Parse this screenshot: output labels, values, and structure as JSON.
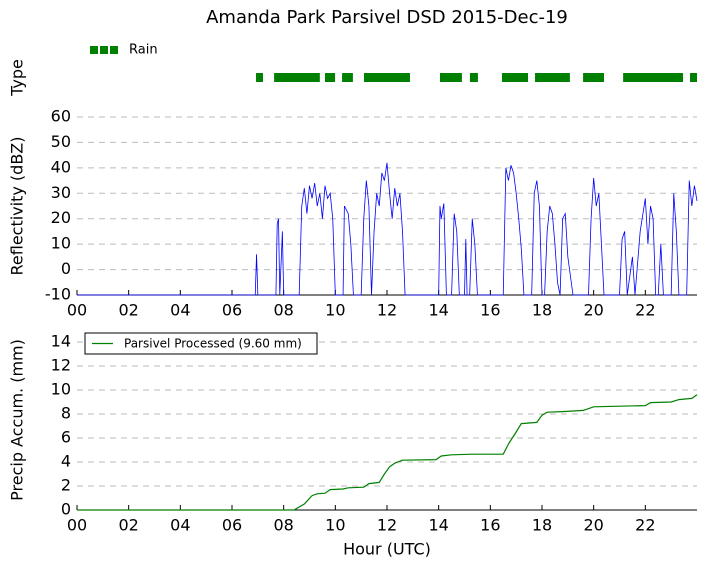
{
  "chart_data": [
    {
      "type": "timeline",
      "title": "Amanda Park Parsivel DSD 2015-Dec-19",
      "ylabel": "Type",
      "xlim": [
        0,
        24
      ],
      "series": [
        {
          "name": "Rain",
          "color": "#008000",
          "start": [
            6.93,
            7.63,
            9.6,
            10.26,
            11.11,
            14.05,
            15.21,
            16.45,
            17.73,
            19.59,
            21.14,
            23.73
          ],
          "end": [
            7.2,
            9.4,
            9.99,
            10.68,
            12.89,
            14.9,
            15.52,
            17.46,
            19.08,
            20.4,
            23.46,
            24
          ]
        }
      ]
    },
    {
      "type": "line",
      "ylabel": "Reflectivity (dBZ)",
      "grid": true,
      "xlim": [
        0,
        24
      ],
      "ylim": [
        -10,
        60
      ],
      "xticks": [
        {
          "value": 0,
          "label": "00"
        },
        {
          "value": 2,
          "label": "02"
        },
        {
          "value": 4,
          "label": "04"
        },
        {
          "value": 6,
          "label": "06"
        },
        {
          "value": 8,
          "label": "08"
        },
        {
          "value": 10,
          "label": "10"
        },
        {
          "value": 12,
          "label": "12"
        },
        {
          "value": 14,
          "label": "14"
        },
        {
          "value": 16,
          "label": "16"
        },
        {
          "value": 18,
          "label": "18"
        },
        {
          "value": 20,
          "label": "20"
        },
        {
          "value": 22,
          "label": "22"
        }
      ],
      "yticks": [
        -10,
        0,
        10,
        20,
        30,
        40,
        50,
        60
      ],
      "x": [
        0,
        6.9,
        6.95,
        7.0,
        7.7,
        7.75,
        7.8,
        7.85,
        7.95,
        8.0,
        8.6,
        8.7,
        8.8,
        8.9,
        9.0,
        9.1,
        9.2,
        9.3,
        9.4,
        9.5,
        9.6,
        9.7,
        9.8,
        9.9,
        10.0,
        10.3,
        10.35,
        10.5,
        10.6,
        10.7,
        11.0,
        11.1,
        11.2,
        11.3,
        11.4,
        11.5,
        11.6,
        11.7,
        11.8,
        11.9,
        12.0,
        12.1,
        12.2,
        12.3,
        12.4,
        12.5,
        12.6,
        12.7,
        14.0,
        14.05,
        14.1,
        14.2,
        14.3,
        14.5,
        14.6,
        14.7,
        14.8,
        15.0,
        15.05,
        15.1,
        15.2,
        15.3,
        15.4,
        15.5,
        16.5,
        16.6,
        16.7,
        16.8,
        16.9,
        17.0,
        17.1,
        17.2,
        17.3,
        17.6,
        17.7,
        17.8,
        17.9,
        18.0,
        18.1,
        18.2,
        18.3,
        18.4,
        18.5,
        18.6,
        18.7,
        18.8,
        18.9,
        19.0,
        19.2,
        19.8,
        19.9,
        20.0,
        20.1,
        20.2,
        20.3,
        20.4,
        21.0,
        21.1,
        21.2,
        21.3,
        21.5,
        21.6,
        21.8,
        22.0,
        22.1,
        22.2,
        22.3,
        22.4,
        22.5,
        22.6,
        22.7,
        23.0,
        23.1,
        23.2,
        23.3,
        23.6,
        23.7,
        23.8,
        23.9,
        24.0
      ],
      "series": [
        {
          "color": "#0000ff",
          "values": [
            -10,
            -10,
            6,
            -10,
            -10,
            18,
            20,
            -10,
            15,
            -10,
            -10,
            25,
            32,
            22,
            33,
            28,
            34,
            25,
            30,
            20,
            33,
            28,
            30,
            20,
            -10,
            -10,
            25,
            22,
            10,
            -10,
            -10,
            20,
            35,
            25,
            -10,
            15,
            30,
            25,
            38,
            35,
            42,
            30,
            20,
            32,
            25,
            30,
            15,
            -10,
            -10,
            25,
            20,
            26,
            -10,
            -10,
            22,
            15,
            -10,
            -10,
            12,
            -10,
            -10,
            20,
            10,
            -10,
            -10,
            40,
            35,
            41,
            38,
            30,
            20,
            8,
            -10,
            -10,
            30,
            35,
            25,
            -10,
            -10,
            15,
            25,
            22,
            10,
            -5,
            -10,
            20,
            22,
            5,
            -10,
            -10,
            20,
            36,
            25,
            30,
            10,
            -10,
            -10,
            12,
            15,
            -10,
            5,
            -10,
            15,
            28,
            10,
            25,
            20,
            -10,
            -10,
            10,
            -10,
            -10,
            30,
            15,
            -10,
            -10,
            35,
            25,
            33,
            27
          ]
        }
      ]
    },
    {
      "type": "line",
      "xlabel": "Hour (UTC)",
      "ylabel": "Precip Accum. (mm)",
      "grid": true,
      "legend": "upper left",
      "xlim": [
        0,
        24
      ],
      "ylim": [
        0,
        15
      ],
      "xticks": [
        {
          "value": 0,
          "label": "00"
        },
        {
          "value": 2,
          "label": "02"
        },
        {
          "value": 4,
          "label": "04"
        },
        {
          "value": 6,
          "label": "06"
        },
        {
          "value": 8,
          "label": "08"
        },
        {
          "value": 10,
          "label": "10"
        },
        {
          "value": 12,
          "label": "12"
        },
        {
          "value": 14,
          "label": "14"
        },
        {
          "value": 16,
          "label": "16"
        },
        {
          "value": 18,
          "label": "18"
        },
        {
          "value": 20,
          "label": "20"
        },
        {
          "value": 22,
          "label": "22"
        }
      ],
      "yticks": [
        0,
        2,
        4,
        6,
        8,
        10,
        12,
        14
      ],
      "x": [
        0,
        8.4,
        8.8,
        9.1,
        9.3,
        9.6,
        9.8,
        10.3,
        10.5,
        11.1,
        11.3,
        11.7,
        11.9,
        12.1,
        12.3,
        12.6,
        13.9,
        14.1,
        14.5,
        15.3,
        16.5,
        16.7,
        17.0,
        17.2,
        17.8,
        18.0,
        18.2,
        18.8,
        19.6,
        20.0,
        21.0,
        22.0,
        22.2,
        23.0,
        23.3,
        23.8,
        24.0
      ],
      "series": [
        {
          "name": "Parsivel Processed (9.60 mm)",
          "color": "#008000",
          "values": [
            0,
            0,
            0.5,
            1.2,
            1.35,
            1.4,
            1.7,
            1.75,
            1.85,
            1.9,
            2.2,
            2.3,
            3.0,
            3.6,
            3.9,
            4.15,
            4.2,
            4.5,
            4.6,
            4.65,
            4.65,
            5.5,
            6.5,
            7.2,
            7.3,
            7.9,
            8.15,
            8.2,
            8.3,
            8.6,
            8.65,
            8.7,
            8.95,
            9.0,
            9.2,
            9.3,
            9.6
          ]
        }
      ]
    }
  ]
}
